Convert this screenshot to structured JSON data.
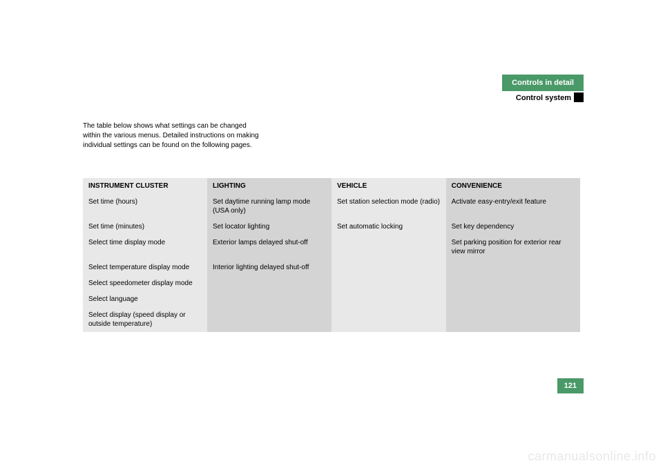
{
  "header": {
    "section": "Controls in detail",
    "subsection": "Control system"
  },
  "intro": "The table below shows what settings can be changed within the various menus. Detailed instructions on making individual settings can be found on the following pages.",
  "table": {
    "headers": {
      "c1": "INSTRUMENT CLUSTER",
      "c2": "LIGHTING",
      "c3": "VEHICLE",
      "c4": "CONVENIENCE"
    },
    "rows": [
      {
        "c1": "Set time (hours)",
        "c2": "Set daytime running lamp mode (USA only)",
        "c3": "Set station selection mode (radio)",
        "c4": "Activate easy-entry/exit feature"
      },
      {
        "c1": "Set time (minutes)",
        "c2": "Set locator lighting",
        "c3": "Set automatic locking",
        "c4": "Set key dependency"
      },
      {
        "c1": "Select time display mode",
        "c2": "Exterior lamps delayed shut-off",
        "c3": "",
        "c4": "Set parking position for exterior rear view mirror"
      },
      {
        "c1": "Select temperature display mode",
        "c2": "Interior lighting delayed shut-off",
        "c3": "",
        "c4": ""
      },
      {
        "c1": "Select speedometer display mode",
        "c2": "",
        "c3": "",
        "c4": ""
      },
      {
        "c1": "Select language",
        "c2": "",
        "c3": "",
        "c4": ""
      },
      {
        "c1": "Select display (speed display or outside temperature)",
        "c2": "",
        "c3": "",
        "c4": ""
      }
    ]
  },
  "pageNumber": "121",
  "watermark": "carmanualsonline.info",
  "colors": {
    "green": "#4a9968",
    "lightGray": "#e8e8e8",
    "darkGray": "#d4d4d4"
  }
}
